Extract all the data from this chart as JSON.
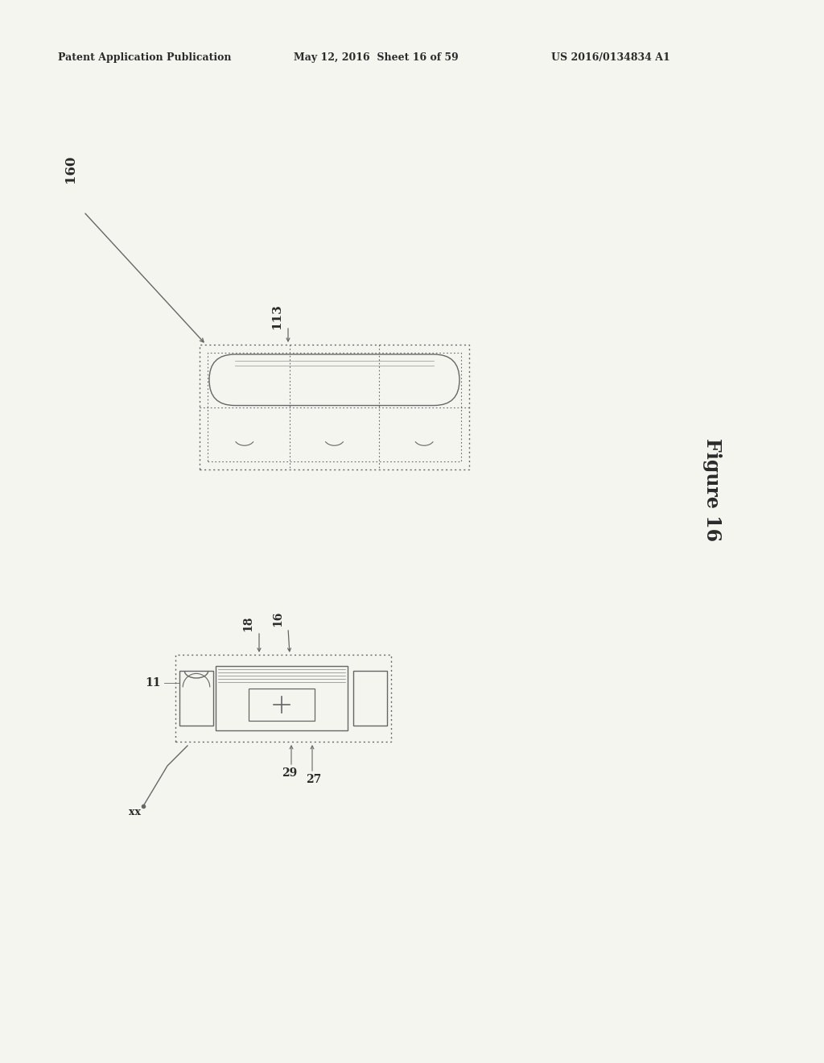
{
  "bg_color": "#f5f5f0",
  "header_left": "Patent Application Publication",
  "header_center": "May 12, 2016  Sheet 16 of 59",
  "header_right": "US 2016/0134834 A1",
  "figure_label": "Figure 16",
  "label_160": "160",
  "label_113": "113",
  "label_11": "11",
  "label_16": "16",
  "label_18": "18",
  "label_27": "27",
  "label_29": "29",
  "label_xx": "xx",
  "text_color": "#2a2a2a",
  "draw_color": "#666666",
  "header_line_color": "#333333"
}
